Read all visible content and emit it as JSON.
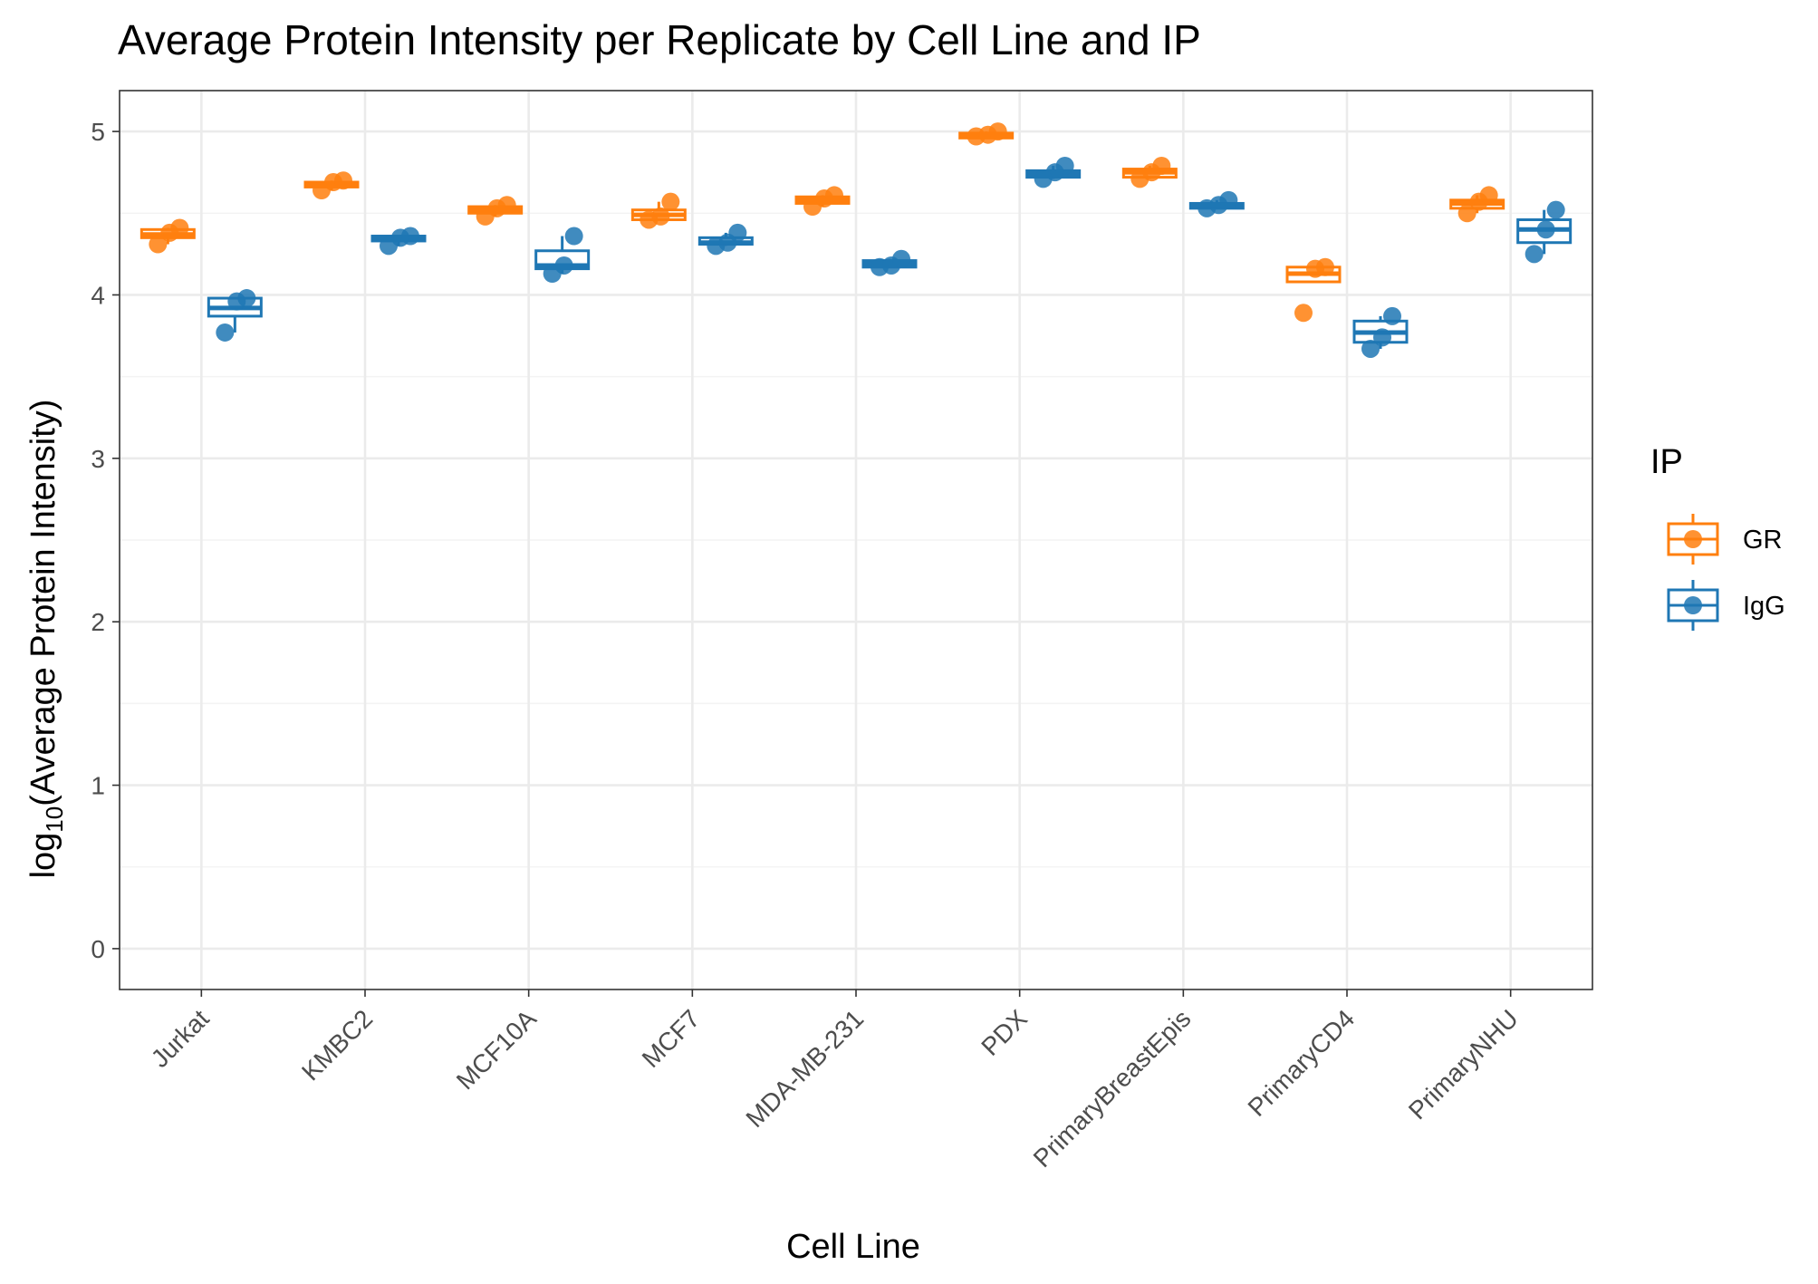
{
  "chart_data": {
    "type": "boxplot",
    "title": "Average Protein Intensity per Replicate by Cell Line and IP",
    "xlabel": "Cell Line",
    "ylabel_prefix": "log",
    "ylabel_subscript": "10",
    "ylabel_suffix": "(Average Protein Intensity)",
    "ylim": [
      -0.25,
      5.25
    ],
    "yticks": [
      0,
      1,
      2,
      3,
      4,
      5
    ],
    "ytick_labels": [
      "0",
      "1",
      "2",
      "3",
      "4",
      "5"
    ],
    "categories": [
      "Jurkat",
      "KMBC2",
      "MCF10A",
      "MCF7",
      "MDA-MB-231",
      "PDX",
      "PrimaryBreastEpis",
      "PrimaryCD4",
      "PrimaryNHU"
    ],
    "legend": {
      "title": "IP",
      "position": "right"
    },
    "series": [
      {
        "name": "GR",
        "color": "#ff7f0e",
        "boxes": [
          {
            "q1": 4.35,
            "median": 4.37,
            "q3": 4.4,
            "min": 4.31,
            "max": 4.41
          },
          {
            "q1": 4.66,
            "median": 4.68,
            "q3": 4.69,
            "min": 4.64,
            "max": 4.7
          },
          {
            "q1": 4.5,
            "median": 4.52,
            "q3": 4.54,
            "min": 4.48,
            "max": 4.55
          },
          {
            "q1": 4.46,
            "median": 4.49,
            "q3": 4.52,
            "min": 4.46,
            "max": 4.57
          },
          {
            "q1": 4.56,
            "median": 4.58,
            "q3": 4.6,
            "min": 4.54,
            "max": 4.61
          },
          {
            "q1": 4.96,
            "median": 4.97,
            "q3": 4.99,
            "min": 4.96,
            "max": 5.0
          },
          {
            "q1": 4.72,
            "median": 4.75,
            "q3": 4.77,
            "min": 4.71,
            "max": 4.79
          },
          {
            "q1": 4.08,
            "median": 4.13,
            "q3": 4.17,
            "min": 4.08,
            "max": 4.17
          },
          {
            "q1": 4.53,
            "median": 4.56,
            "q3": 4.58,
            "min": 4.5,
            "max": 4.61
          }
        ],
        "points": [
          [
            4.31,
            4.38,
            4.41
          ],
          [
            4.64,
            4.69,
            4.7
          ],
          [
            4.48,
            4.53,
            4.55
          ],
          [
            4.46,
            4.48,
            4.57
          ],
          [
            4.54,
            4.59,
            4.61
          ],
          [
            4.97,
            4.98,
            5.0
          ],
          [
            4.71,
            4.75,
            4.79
          ],
          [
            3.89,
            4.16,
            4.17
          ],
          [
            4.5,
            4.57,
            4.61
          ]
        ]
      },
      {
        "name": "IgG",
        "color": "#1f77b4",
        "boxes": [
          {
            "q1": 3.87,
            "median": 3.92,
            "q3": 3.98,
            "min": 3.77,
            "max": 3.98
          },
          {
            "q1": 4.33,
            "median": 4.35,
            "q3": 4.36,
            "min": 4.3,
            "max": 4.36
          },
          {
            "q1": 4.16,
            "median": 4.18,
            "q3": 4.27,
            "min": 4.13,
            "max": 4.36
          },
          {
            "q1": 4.31,
            "median": 4.32,
            "q3": 4.35,
            "min": 4.3,
            "max": 4.38
          },
          {
            "q1": 4.17,
            "median": 4.19,
            "q3": 4.21,
            "min": 4.17,
            "max": 4.22
          },
          {
            "q1": 4.72,
            "median": 4.74,
            "q3": 4.76,
            "min": 4.71,
            "max": 4.79
          },
          {
            "q1": 4.53,
            "median": 4.55,
            "q3": 4.56,
            "min": 4.53,
            "max": 4.58
          },
          {
            "q1": 3.71,
            "median": 3.77,
            "q3": 3.84,
            "min": 3.67,
            "max": 3.87
          },
          {
            "q1": 4.32,
            "median": 4.4,
            "q3": 4.46,
            "min": 4.25,
            "max": 4.52
          }
        ],
        "points": [
          [
            3.77,
            3.96,
            3.98
          ],
          [
            4.3,
            4.35,
            4.36
          ],
          [
            4.13,
            4.18,
            4.36
          ],
          [
            4.3,
            4.32,
            4.38
          ],
          [
            4.17,
            4.18,
            4.22
          ],
          [
            4.71,
            4.75,
            4.79
          ],
          [
            4.53,
            4.55,
            4.58
          ],
          [
            3.67,
            3.74,
            3.87
          ],
          [
            4.25,
            4.4,
            4.52
          ]
        ]
      }
    ]
  }
}
